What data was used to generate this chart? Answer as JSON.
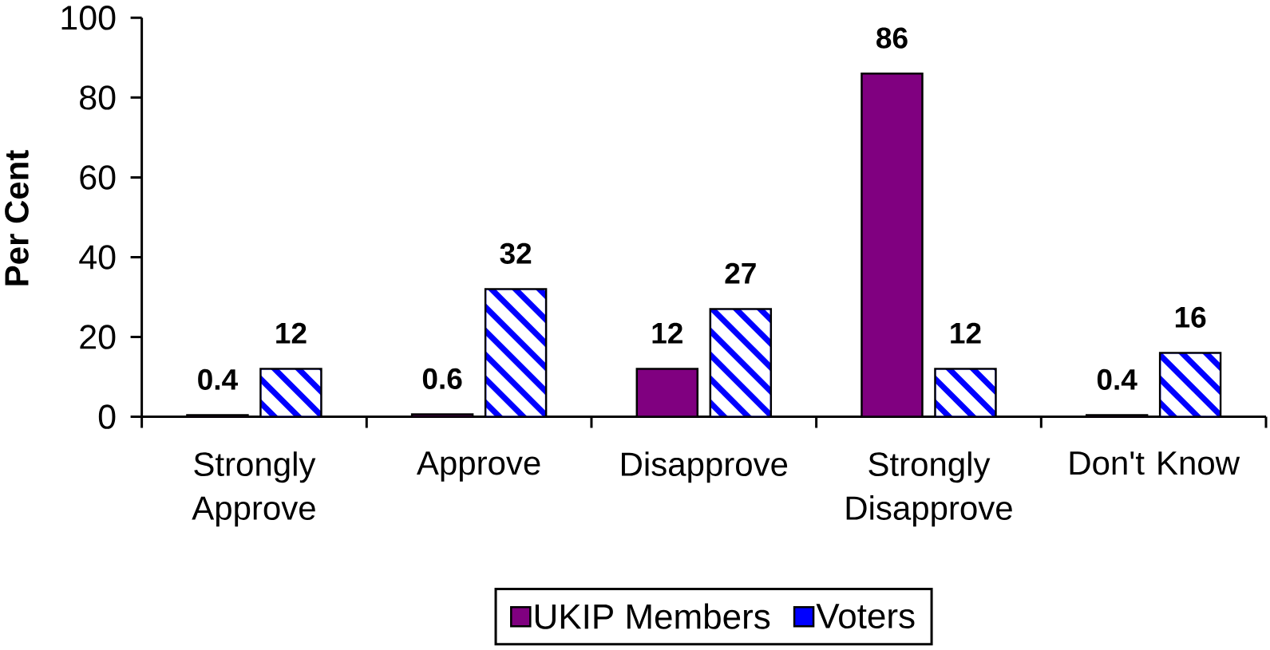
{
  "chart_data": {
    "type": "bar",
    "ylabel": "Per Cent",
    "categories": [
      "Strongly Approve",
      "Approve",
      "Disapprove",
      "Strongly Disapprove",
      "Don't Know"
    ],
    "series": [
      {
        "name": "UKIP Members",
        "color": "#800080",
        "values": [
          0.4,
          0.6,
          12,
          86,
          0.4
        ]
      },
      {
        "name": "Voters",
        "color": "#0000ff",
        "values": [
          12,
          32,
          27,
          12,
          16
        ]
      }
    ],
    "ylim": [
      0,
      100
    ],
    "yticks": [
      0,
      20,
      40,
      60,
      80,
      100
    ],
    "data_labels": true,
    "legend": "bottom"
  }
}
